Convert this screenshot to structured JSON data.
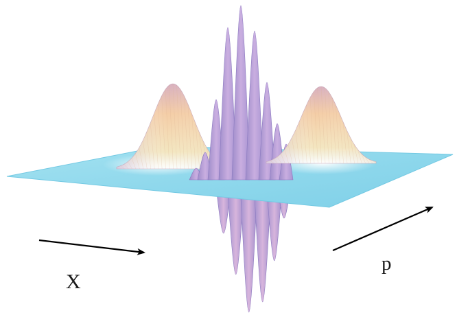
{
  "labels": {
    "x_axis": "X",
    "p_axis": "p"
  },
  "colors": {
    "plane": "#8fd8ec",
    "plane_edge": "#6cc6e2",
    "gaussian_top": "#f6c9a0",
    "gaussian_shade": "#d6b6c8",
    "fringe": "#b49fd6",
    "fringe_light": "#e3c9e2",
    "arrow": "#000000"
  },
  "figure": {
    "components": [
      "gaussian-peak",
      "interference-fringes",
      "gaussian-peak"
    ]
  }
}
